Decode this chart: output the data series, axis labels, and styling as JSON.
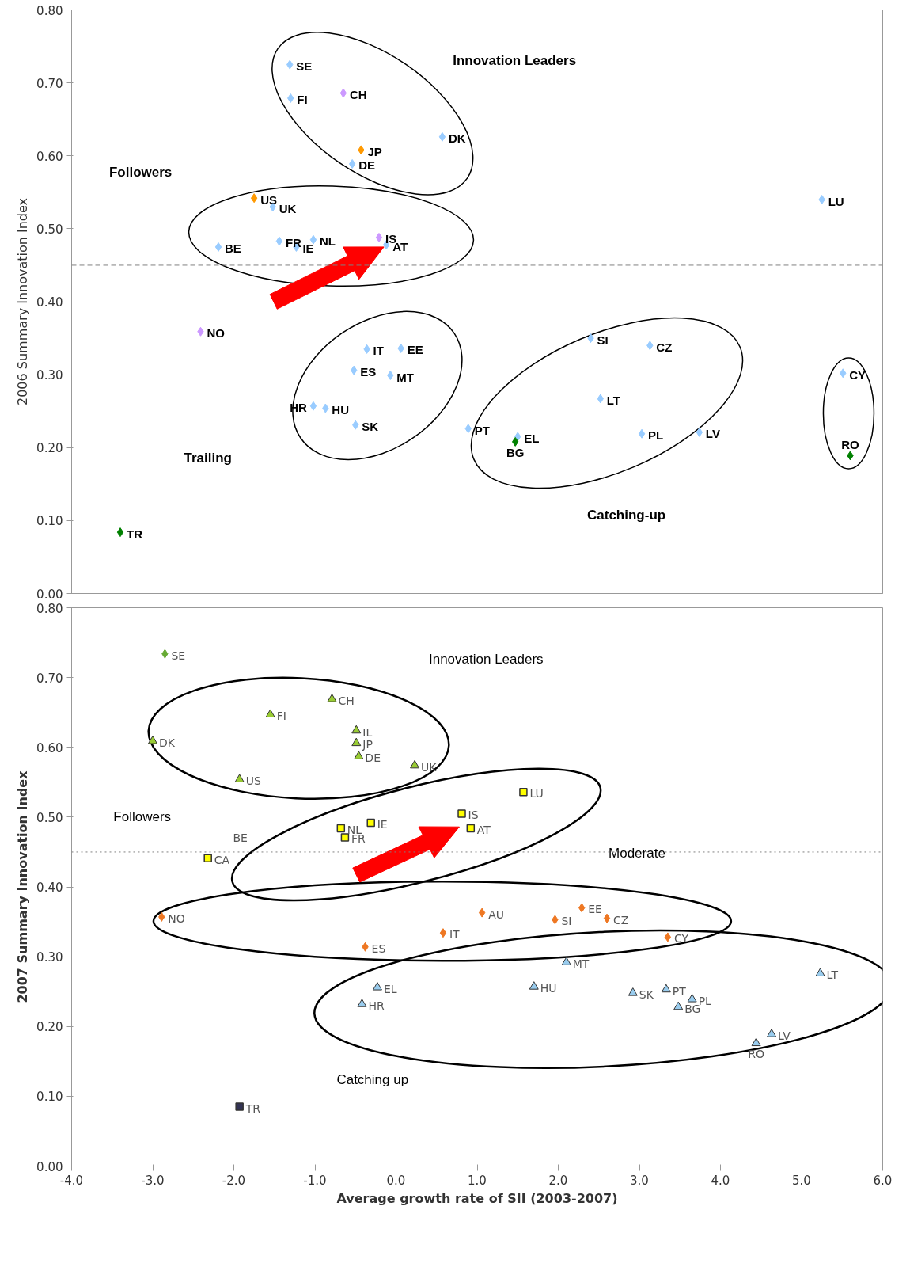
{
  "chart_data": [
    {
      "type": "scatter",
      "ylabel": "2006 Summary Innovation Index",
      "xlim": [
        -4,
        6
      ],
      "ylim": [
        0,
        0.8
      ],
      "yticks": [
        {
          "value": 0,
          "label": "0.00"
        },
        {
          "value": 0.1,
          "label": "0.10"
        },
        {
          "value": 0.2,
          "label": "0.20"
        },
        {
          "value": 0.3,
          "label": "0.30"
        },
        {
          "value": 0.4,
          "label": "0.40"
        },
        {
          "value": 0.5,
          "label": "0.50"
        },
        {
          "value": 0.6,
          "label": "0.60"
        },
        {
          "value": 0.7,
          "label": "0.70"
        },
        {
          "value": 0.8,
          "label": "0.80"
        }
      ],
      "tick_labels": "y",
      "grid": false,
      "marker": "diamond",
      "series": [
        {
          "color": "#99ccff",
          "x": [
            -1.31,
            -1.3,
            0.57,
            -0.54,
            5.25,
            -1.52,
            -1.44,
            -2.19,
            -1.23,
            -1.02,
            -0.12,
            -0.36,
            0.06,
            -0.52,
            -0.07,
            -0.87,
            -1.02,
            -0.5,
            2.4,
            3.13,
            2.52,
            0.89,
            1.5,
            3.03,
            3.74,
            5.51
          ],
          "values": [
            0.725,
            0.679,
            0.626,
            0.589,
            0.54,
            0.53,
            0.483,
            0.475,
            0.475,
            0.485,
            0.478,
            0.335,
            0.336,
            0.306,
            0.299,
            0.254,
            0.257,
            0.231,
            0.35,
            0.34,
            0.267,
            0.226,
            0.215,
            0.219,
            0.221,
            0.302
          ]
        },
        {
          "color": "#cc99ff",
          "x": [
            -0.65,
            -0.21,
            -2.41
          ],
          "values": [
            0.686,
            0.488,
            0.359
          ]
        },
        {
          "color": "#ff9900",
          "x": [
            -0.43,
            -1.75
          ],
          "values": [
            0.608,
            0.542
          ]
        },
        {
          "color": "#008000",
          "x": [
            1.47,
            5.6,
            -3.4
          ],
          "values": [
            0.208,
            0.189,
            0.084
          ]
        }
      ],
      "ref_lines": [
        {
          "axis": "y",
          "value": 0.45,
          "line_style": "dashed",
          "color": "#808080"
        },
        {
          "axis": "x",
          "value": 0,
          "line_style": "dashed",
          "color": "#808080"
        }
      ],
      "annotations": [
        "Innovation Leaders",
        "Followers",
        "Trailing",
        "Catching-up",
        {
          "text": "SE",
          "x": -1.31,
          "y": 0.725
        },
        {
          "text": "FI",
          "x": -1.3,
          "y": 0.679
        },
        {
          "text": "DK",
          "x": 0.57,
          "y": 0.626
        },
        {
          "text": "DE",
          "x": -0.54,
          "y": 0.589
        },
        {
          "text": "LU",
          "x": 5.25,
          "y": 0.54
        },
        {
          "text": "UK",
          "x": -1.52,
          "y": 0.53
        },
        {
          "text": "FR",
          "x": -1.44,
          "y": 0.483
        },
        {
          "text": "BE",
          "x": -2.19,
          "y": 0.475
        },
        {
          "text": "IE",
          "x": -1.23,
          "y": 0.475
        },
        {
          "text": "NL",
          "x": -1.02,
          "y": 0.485
        },
        {
          "text": "AT",
          "x": -0.12,
          "y": 0.478
        },
        {
          "text": "IT",
          "x": -0.36,
          "y": 0.335
        },
        {
          "text": "EE",
          "x": 0.06,
          "y": 0.336
        },
        {
          "text": "ES",
          "x": -0.52,
          "y": 0.306
        },
        {
          "text": "MT",
          "x": -0.07,
          "y": 0.299
        },
        {
          "text": "HU",
          "x": -0.87,
          "y": 0.254
        },
        {
          "text": "HR",
          "x": -1.02,
          "y": 0.257
        },
        {
          "text": "SK",
          "x": -0.5,
          "y": 0.231
        },
        {
          "text": "SI",
          "x": 2.4,
          "y": 0.35
        },
        {
          "text": "CZ",
          "x": 3.13,
          "y": 0.34
        },
        {
          "text": "LT",
          "x": 2.52,
          "y": 0.267
        },
        {
          "text": "PT",
          "x": 0.89,
          "y": 0.226
        },
        {
          "text": "EL",
          "x": 1.5,
          "y": 0.215
        },
        {
          "text": "PL",
          "x": 3.03,
          "y": 0.219
        },
        {
          "text": "LV",
          "x": 3.74,
          "y": 0.221
        },
        {
          "text": "CY",
          "x": 5.51,
          "y": 0.302
        },
        {
          "text": "CH",
          "x": -0.65,
          "y": 0.686
        },
        {
          "text": "IS",
          "x": -0.21,
          "y": 0.488
        },
        {
          "text": "NO",
          "x": -2.41,
          "y": 0.359
        },
        {
          "text": "JP",
          "x": -0.43,
          "y": 0.608
        },
        {
          "text": "US",
          "x": -1.75,
          "y": 0.542
        },
        {
          "text": "BG",
          "x": 1.47,
          "y": 0.208
        },
        {
          "text": "RO",
          "x": 5.6,
          "y": 0.189
        },
        {
          "text": "TR",
          "x": -3.4,
          "y": 0.084
        }
      ]
    },
    {
      "type": "scatter",
      "xlabel": "Average growth rate of SII (2003-2007)",
      "ylabel": "2007 Summary Innovation Index",
      "xlim": [
        -4,
        6
      ],
      "ylim": [
        0,
        0.8
      ],
      "xticks": [
        {
          "value": -4,
          "label": "-4.0"
        },
        {
          "value": -3,
          "label": "-3.0"
        },
        {
          "value": -2,
          "label": "-2.0"
        },
        {
          "value": -1,
          "label": "-1.0"
        },
        {
          "value": 0,
          "label": "0.0"
        },
        {
          "value": 1,
          "label": "1.0"
        },
        {
          "value": 2,
          "label": "2.0"
        },
        {
          "value": 3,
          "label": "3.0"
        },
        {
          "value": 4,
          "label": "4.0"
        },
        {
          "value": 5,
          "label": "5.0"
        },
        {
          "value": 6,
          "label": "6.0"
        }
      ],
      "yticks": [
        {
          "value": 0,
          "label": "0.00"
        },
        {
          "value": 0.1,
          "label": "0.10"
        },
        {
          "value": 0.2,
          "label": "0.20"
        },
        {
          "value": 0.3,
          "label": "0.30"
        },
        {
          "value": 0.4,
          "label": "0.40"
        },
        {
          "value": 0.5,
          "label": "0.50"
        },
        {
          "value": 0.6,
          "label": "0.60"
        },
        {
          "value": 0.7,
          "label": "0.70"
        },
        {
          "value": 0.8,
          "label": "0.80"
        }
      ],
      "grid": false,
      "series": [
        {
          "color": "#66aa33",
          "marker": "diamond",
          "x": [
            -2.85
          ],
          "values": [
            0.734
          ]
        },
        {
          "color": "#99cc33",
          "marker": "triangle",
          "x": [
            -0.79,
            -1.55,
            -0.49,
            -0.49,
            -0.46,
            -3.0,
            -1.93,
            0.23
          ],
          "values": [
            0.669,
            0.647,
            0.624,
            0.606,
            0.587,
            0.609,
            0.554,
            0.574
          ]
        },
        {
          "color": "#ffff00",
          "marker": "square",
          "x": [
            1.57,
            0.81,
            0.92,
            -0.68,
            -0.63,
            -0.31,
            -2.32
          ],
          "values": [
            0.536,
            0.505,
            0.484,
            0.484,
            0.471,
            0.492,
            0.441
          ]
        },
        {
          "color": "#ee7722",
          "marker": "diamond",
          "x": [
            -2.89,
            -0.38,
            0.58,
            1.06,
            1.96,
            2.29,
            2.6,
            3.35
          ],
          "values": [
            0.357,
            0.314,
            0.334,
            0.363,
            0.353,
            0.37,
            0.355,
            0.328
          ]
        },
        {
          "color": "#99ccee",
          "marker": "triangle",
          "x": [
            -0.23,
            -0.42,
            2.1,
            1.7,
            2.92,
            3.33,
            3.48,
            3.65,
            5.23,
            4.63,
            4.44
          ],
          "values": [
            0.256,
            0.232,
            0.292,
            0.257,
            0.248,
            0.253,
            0.228,
            0.239,
            0.276,
            0.189,
            0.176
          ]
        },
        {
          "color": "#333355",
          "marker": "square",
          "x": [
            -1.93
          ],
          "values": [
            0.085
          ]
        }
      ],
      "ref_lines": [
        {
          "axis": "y",
          "value": 0.45,
          "line_style": "dotted",
          "color": "#808080"
        },
        {
          "axis": "x",
          "value": 0,
          "line_style": "dotted",
          "color": "#808080"
        }
      ],
      "annotations": [
        "Innovation Leaders",
        "Followers",
        "Moderate",
        "Catching up",
        "BE",
        {
          "text": "SE",
          "x": -2.85,
          "y": 0.734
        },
        {
          "text": "CH",
          "x": -0.79,
          "y": 0.669
        },
        {
          "text": "FI",
          "x": -1.55,
          "y": 0.647
        },
        {
          "text": "IL",
          "x": -0.49,
          "y": 0.624
        },
        {
          "text": "JP",
          "x": -0.49,
          "y": 0.606
        },
        {
          "text": "DE",
          "x": -0.46,
          "y": 0.587
        },
        {
          "text": "DK",
          "x": -3.0,
          "y": 0.609
        },
        {
          "text": "US",
          "x": -1.93,
          "y": 0.554
        },
        {
          "text": "UK",
          "x": 0.23,
          "y": 0.574
        },
        {
          "text": "LU",
          "x": 1.57,
          "y": 0.536
        },
        {
          "text": "IS",
          "x": 0.81,
          "y": 0.505
        },
        {
          "text": "AT",
          "x": 0.92,
          "y": 0.484
        },
        {
          "text": "NL",
          "x": -0.68,
          "y": 0.484
        },
        {
          "text": "FR",
          "x": -0.63,
          "y": 0.471
        },
        {
          "text": "IE",
          "x": -0.31,
          "y": 0.492
        },
        {
          "text": "CA",
          "x": -2.32,
          "y": 0.441
        },
        {
          "text": "NO",
          "x": -2.89,
          "y": 0.357
        },
        {
          "text": "ES",
          "x": -0.38,
          "y": 0.314
        },
        {
          "text": "IT",
          "x": 0.58,
          "y": 0.334
        },
        {
          "text": "AU",
          "x": 1.06,
          "y": 0.363
        },
        {
          "text": "SI",
          "x": 1.96,
          "y": 0.353
        },
        {
          "text": "EE",
          "x": 2.29,
          "y": 0.37
        },
        {
          "text": "CZ",
          "x": 2.6,
          "y": 0.355
        },
        {
          "text": "CY",
          "x": 3.35,
          "y": 0.328
        },
        {
          "text": "EL",
          "x": -0.23,
          "y": 0.256
        },
        {
          "text": "HR",
          "x": -0.42,
          "y": 0.232
        },
        {
          "text": "MT",
          "x": 2.1,
          "y": 0.292
        },
        {
          "text": "HU",
          "x": 1.7,
          "y": 0.257
        },
        {
          "text": "SK",
          "x": 2.92,
          "y": 0.248
        },
        {
          "text": "PT",
          "x": 3.33,
          "y": 0.253
        },
        {
          "text": "BG",
          "x": 3.48,
          "y": 0.228
        },
        {
          "text": "PL",
          "x": 3.65,
          "y": 0.239
        },
        {
          "text": "LT",
          "x": 5.23,
          "y": 0.276
        },
        {
          "text": "LV",
          "x": 4.63,
          "y": 0.189
        },
        {
          "text": "RO",
          "x": 4.44,
          "y": 0.176
        },
        {
          "text": "TR",
          "x": -1.93,
          "y": 0.085
        }
      ]
    }
  ]
}
